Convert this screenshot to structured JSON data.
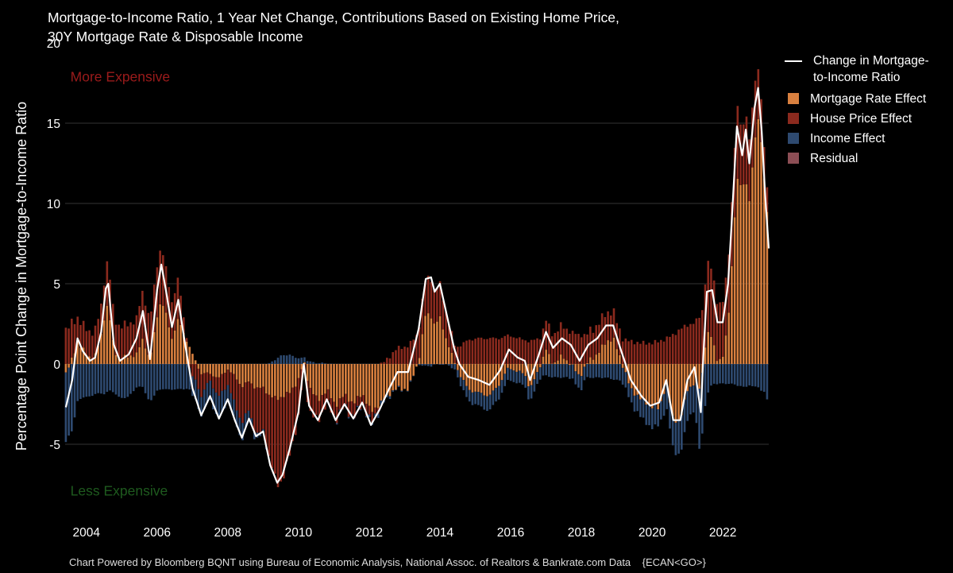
{
  "title_line1": "Mortgage-to-Income Ratio, 1 Year Net Change, Contributions Based on Existing Home Price,",
  "title_line2": "30Y Mortgage Rate & Disposable Income",
  "footer": "Chart Powered by Bloomberg BQNT using Bureau of Economic Analysis, National Assoc. of Realtors & Bankrate.com Data    {ECAN<GO>}",
  "colors": {
    "background": "#000000",
    "mortgage_rate": "#D9803F",
    "house_price": "#8B2A1E",
    "income": "#2E4A70",
    "residual": "#8C4E55",
    "ratio_line": "#FFFFFF",
    "grid": "#333333",
    "more_expensive": "#9B1B1B",
    "less_expensive": "#1E5A1E"
  },
  "chart_data": {
    "type": "bar",
    "stacked": true,
    "title": "Mortgage-to-Income Ratio, 1 Year Net Change, Contributions Based on Existing Home Price, 30Y Mortgage Rate & Disposable Income",
    "ylabel": "Percentage Point Change in Mortgage-to-Income Ratio",
    "xlabel": "",
    "ylim": [
      -10,
      20
    ],
    "yticks": [
      -5,
      0,
      5,
      10,
      15,
      20
    ],
    "xlim": [
      2003.4,
      2023.3
    ],
    "xticks": [
      2004,
      2006,
      2008,
      2010,
      2012,
      2014,
      2016,
      2018,
      2020,
      2022
    ],
    "grid": true,
    "legend_position": "right",
    "legend": [
      {
        "key": "ratio",
        "label_lines": [
          "Change in Mortgage-",
          "to-Income Ratio"
        ],
        "kind": "line"
      },
      {
        "key": "mortgage_rate",
        "label_lines": [
          "Mortgage Rate Effect"
        ],
        "kind": "bar"
      },
      {
        "key": "house_price",
        "label_lines": [
          "House Price Effect"
        ],
        "kind": "bar"
      },
      {
        "key": "income",
        "label_lines": [
          "Income Effect"
        ],
        "kind": "bar"
      },
      {
        "key": "residual",
        "label_lines": [
          "Residual"
        ],
        "kind": "bar"
      }
    ],
    "annotations": [
      {
        "text": "More Expensive",
        "x": 2003.55,
        "y": 17.9,
        "tone": "more_expensive"
      },
      {
        "text": "Less Expensive",
        "x": 2003.55,
        "y": -7.9,
        "tone": "less_expensive"
      }
    ],
    "anchor_columns": [
      "x",
      "ratio_change",
      "mortgage_rate_effect",
      "house_price_effect",
      "income_effect"
    ],
    "anchors": [
      [
        2003.42,
        -2.7,
        -0.6,
        2.2,
        -4.3
      ],
      [
        2003.6,
        -1.0,
        0.3,
        2.3,
        -4.1
      ],
      [
        2003.75,
        1.6,
        1.4,
        1.5,
        -2.3
      ],
      [
        2003.9,
        0.8,
        0.9,
        1.5,
        -2.0
      ],
      [
        2004.1,
        0.2,
        0.4,
        1.6,
        -2.0
      ],
      [
        2004.25,
        0.4,
        0.5,
        1.6,
        -1.8
      ],
      [
        2004.42,
        2.0,
        1.8,
        1.8,
        -1.8
      ],
      [
        2004.55,
        4.7,
        3.5,
        2.6,
        -1.8
      ],
      [
        2004.62,
        5.0,
        3.6,
        2.8,
        -1.6
      ],
      [
        2004.78,
        1.2,
        0.9,
        2.0,
        -1.7
      ],
      [
        2004.95,
        0.2,
        0.3,
        2.0,
        -2.1
      ],
      [
        2005.2,
        0.6,
        0.5,
        2.0,
        -2.0
      ],
      [
        2005.42,
        1.6,
        0.6,
        2.2,
        -1.4
      ],
      [
        2005.6,
        3.3,
        1.6,
        3.0,
        -1.4
      ],
      [
        2005.8,
        0.3,
        0.2,
        2.4,
        -2.4
      ],
      [
        2006.0,
        4.6,
        3.0,
        3.2,
        -1.6
      ],
      [
        2006.12,
        6.2,
        4.0,
        3.4,
        -1.6
      ],
      [
        2006.25,
        4.6,
        3.1,
        2.8,
        -1.5
      ],
      [
        2006.42,
        2.3,
        1.6,
        2.3,
        -1.6
      ],
      [
        2006.6,
        4.0,
        2.8,
        2.5,
        -1.5
      ],
      [
        2006.78,
        1.4,
        1.8,
        0.7,
        -1.6
      ],
      [
        2007.0,
        -1.5,
        0.6,
        -0.8,
        -1.2
      ],
      [
        2007.25,
        -3.2,
        -0.6,
        -1.4,
        -1.2
      ],
      [
        2007.5,
        -2.0,
        -0.6,
        -0.4,
        -1.2
      ],
      [
        2007.75,
        -3.4,
        -0.9,
        -1.2,
        -1.4
      ],
      [
        2008.0,
        -2.2,
        -0.3,
        -0.9,
        -1.0
      ],
      [
        2008.2,
        -3.5,
        -0.8,
        -1.8,
        -1.0
      ],
      [
        2008.4,
        -4.6,
        -1.4,
        -2.2,
        -1.1
      ],
      [
        2008.6,
        -3.4,
        -1.1,
        -1.8,
        -0.5
      ],
      [
        2008.8,
        -4.5,
        -1.5,
        -2.9,
        -0.3
      ],
      [
        2009.0,
        -4.2,
        -1.5,
        -2.7,
        -0.2
      ],
      [
        2009.2,
        -6.3,
        -2.0,
        -4.0,
        0.1
      ],
      [
        2009.4,
        -7.4,
        -2.2,
        -5.4,
        0.4
      ],
      [
        2009.55,
        -6.9,
        -2.0,
        -5.2,
        0.6
      ],
      [
        2009.75,
        -5.3,
        -1.8,
        -3.9,
        0.6
      ],
      [
        2010.0,
        -3.0,
        -1.0,
        -2.4,
        0.4
      ],
      [
        2010.15,
        0.0,
        0.2,
        -0.5,
        0.4
      ],
      [
        2010.3,
        -2.6,
        -1.4,
        -1.5,
        0.2
      ],
      [
        2010.55,
        -3.5,
        -2.3,
        -1.3,
        0.1
      ],
      [
        2010.8,
        -2.2,
        -1.6,
        -0.8,
        0.1
      ],
      [
        2011.05,
        -3.5,
        -2.6,
        -0.9,
        0.0
      ],
      [
        2011.3,
        -2.5,
        -1.9,
        -0.7,
        0.0
      ],
      [
        2011.55,
        -3.4,
        -2.5,
        -0.9,
        0.0
      ],
      [
        2011.8,
        -2.4,
        -1.8,
        -0.6,
        0.0
      ],
      [
        2012.05,
        -3.8,
        -3.0,
        -0.7,
        -0.1
      ],
      [
        2012.3,
        -2.8,
        -2.5,
        -0.1,
        -0.2
      ],
      [
        2012.55,
        -1.6,
        -1.9,
        0.4,
        -0.1
      ],
      [
        2012.8,
        -0.5,
        -1.5,
        1.0,
        0.0
      ],
      [
        2013.1,
        -0.5,
        -1.6,
        1.1,
        0.0
      ],
      [
        2013.4,
        2.2,
        0.2,
        2.0,
        0.0
      ],
      [
        2013.6,
        5.3,
        3.2,
        2.2,
        -0.1
      ],
      [
        2013.75,
        5.4,
        3.0,
        2.4,
        -0.1
      ],
      [
        2013.85,
        4.5,
        2.4,
        2.1,
        0.0
      ],
      [
        2014.0,
        5.0,
        2.9,
        2.1,
        0.0
      ],
      [
        2014.2,
        3.0,
        1.4,
        1.6,
        0.0
      ],
      [
        2014.4,
        1.0,
        0.2,
        1.1,
        -0.3
      ],
      [
        2014.55,
        0.0,
        -0.6,
        1.1,
        -0.5
      ],
      [
        2014.8,
        -0.8,
        -1.6,
        1.5,
        -0.7
      ],
      [
        2015.1,
        -1.0,
        -1.8,
        1.6,
        -0.8
      ],
      [
        2015.4,
        -1.3,
        -2.0,
        1.6,
        -0.9
      ],
      [
        2015.7,
        -0.4,
        -1.2,
        1.6,
        -0.8
      ],
      [
        2015.95,
        0.9,
        -0.2,
        1.8,
        -0.7
      ],
      [
        2016.2,
        0.4,
        -0.5,
        1.6,
        -0.7
      ],
      [
        2016.4,
        0.2,
        -0.6,
        1.5,
        -0.7
      ],
      [
        2016.55,
        -1.0,
        -1.6,
        1.4,
        -0.8
      ],
      [
        2016.8,
        0.6,
        -0.3,
        1.6,
        -0.7
      ],
      [
        2017.0,
        2.0,
        0.9,
        1.8,
        -0.7
      ],
      [
        2017.2,
        1.0,
        0.0,
        1.8,
        -0.8
      ],
      [
        2017.45,
        1.6,
        0.5,
        1.9,
        -0.8
      ],
      [
        2017.7,
        1.2,
        0.0,
        2.0,
        -0.8
      ],
      [
        2017.95,
        0.2,
        -0.8,
        1.8,
        -0.8
      ],
      [
        2018.2,
        1.2,
        0.2,
        1.8,
        -0.8
      ],
      [
        2018.45,
        1.6,
        0.6,
        1.8,
        -0.8
      ],
      [
        2018.7,
        2.4,
        1.4,
        1.8,
        -0.8
      ],
      [
        2018.9,
        2.4,
        1.6,
        1.7,
        -0.9
      ],
      [
        2019.1,
        1.0,
        0.4,
        1.6,
        -1.0
      ],
      [
        2019.4,
        -1.0,
        -1.6,
        1.4,
        -0.8
      ],
      [
        2019.7,
        -2.0,
        -2.2,
        1.3,
        -1.1
      ],
      [
        2019.95,
        -2.6,
        -2.6,
        1.3,
        -1.3
      ],
      [
        2020.2,
        -2.4,
        -2.8,
        1.4,
        -1.0
      ],
      [
        2020.4,
        -1.0,
        -1.2,
        1.6,
        -1.4
      ],
      [
        2020.6,
        -3.5,
        -3.5,
        1.8,
        -1.8
      ],
      [
        2020.8,
        -3.5,
        -3.5,
        2.2,
        -2.2
      ],
      [
        2021.0,
        -1.0,
        -1.6,
        2.4,
        -1.8
      ],
      [
        2021.2,
        -0.2,
        -1.2,
        2.6,
        -1.6
      ],
      [
        2021.38,
        -3.0,
        -1.6,
        3.0,
        -4.4
      ],
      [
        2021.45,
        0.5,
        0.2,
        3.6,
        -3.3
      ],
      [
        2021.55,
        4.5,
        2.0,
        4.4,
        -1.9
      ],
      [
        2021.7,
        4.6,
        1.6,
        4.2,
        -1.2
      ],
      [
        2021.85,
        2.6,
        0.2,
        3.6,
        -1.2
      ],
      [
        2022.0,
        2.6,
        0.4,
        3.4,
        -1.2
      ],
      [
        2022.15,
        5.0,
        2.6,
        3.6,
        -1.2
      ],
      [
        2022.25,
        8.8,
        6.0,
        4.0,
        -1.2
      ],
      [
        2022.4,
        14.8,
        11.5,
        4.6,
        -1.3
      ],
      [
        2022.55,
        13.0,
        11.0,
        3.4,
        -1.4
      ],
      [
        2022.65,
        14.6,
        11.6,
        4.4,
        -1.4
      ],
      [
        2022.75,
        12.5,
        10.0,
        3.8,
        -1.3
      ],
      [
        2022.9,
        16.0,
        13.8,
        3.6,
        -1.4
      ],
      [
        2023.0,
        17.2,
        15.4,
        3.2,
        -1.4
      ],
      [
        2023.1,
        14.5,
        13.6,
        2.6,
        -1.7
      ],
      [
        2023.2,
        10.5,
        10.6,
        1.6,
        -1.7
      ],
      [
        2023.3,
        7.2,
        8.4,
        1.4,
        -2.6
      ]
    ]
  }
}
